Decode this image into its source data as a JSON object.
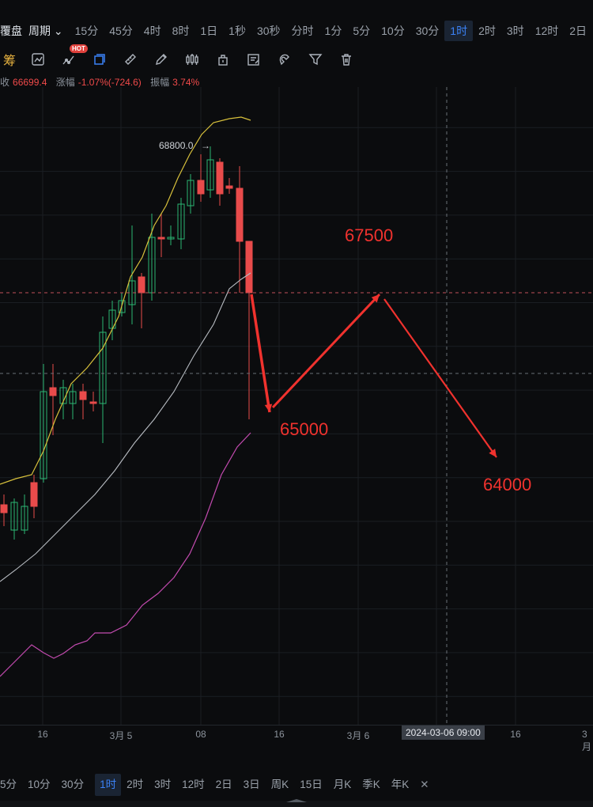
{
  "toolbar": {
    "lead_label": "覆盘",
    "period_dropdown": "周期",
    "periods": [
      "15分",
      "45分",
      "4时",
      "8时",
      "1日",
      "1秒",
      "30秒",
      "分时",
      "1分",
      "5分",
      "10分",
      "30分",
      "1时",
      "2时",
      "3时",
      "12时",
      "2日"
    ],
    "active_period": "1时",
    "chip_label": "筹",
    "hot_badge": "HOT"
  },
  "info": {
    "price_label": "收",
    "price": "66699.4",
    "change_label": "涨幅",
    "change": "-1.07%(-724.6)",
    "amp_label": "振幅",
    "amp": "3.74%"
  },
  "chart": {
    "high_label": "68800.0",
    "annotations": [
      "67500",
      "65000",
      "64000"
    ],
    "x_ticks": [
      "16",
      "3月 5",
      "08",
      "16",
      "3月 6",
      "16",
      "3月"
    ],
    "crosshair_time": "2024-03-06 09:00"
  },
  "bottom": {
    "periods": [
      "5分",
      "10分",
      "30分",
      "1时",
      "2时",
      "3时",
      "12时",
      "2日",
      "3日",
      "周K",
      "15日",
      "月K",
      "季K",
      "年K"
    ],
    "active_period": "1时",
    "close_glyph": "✕"
  },
  "colors": {
    "up": "#2bb673",
    "down": "#e84b4b",
    "ma_yellow": "#d8c13c",
    "ma_white": "#b8bcc2",
    "ma_purple": "#c44bb0",
    "annotation": "#f0322e",
    "accent": "#3b82f6"
  },
  "chart_data": {
    "type": "candlestick",
    "title": "",
    "x_ticks": [
      "16",
      "3月 5",
      "08",
      "16",
      "3月 6",
      "16",
      "3月"
    ],
    "annotations": [
      {
        "text": "67500",
        "type": "target"
      },
      {
        "text": "65000",
        "type": "target"
      },
      {
        "text": "64000",
        "type": "target"
      }
    ],
    "marked_high": 68800.0,
    "crosshair_time": "2024-03-06 09:00",
    "series": [
      {
        "color": "#d8c13c"
      },
      {
        "color": "#b8bcc2"
      },
      {
        "color": "#c44bb0"
      }
    ],
    "grid": true
  }
}
